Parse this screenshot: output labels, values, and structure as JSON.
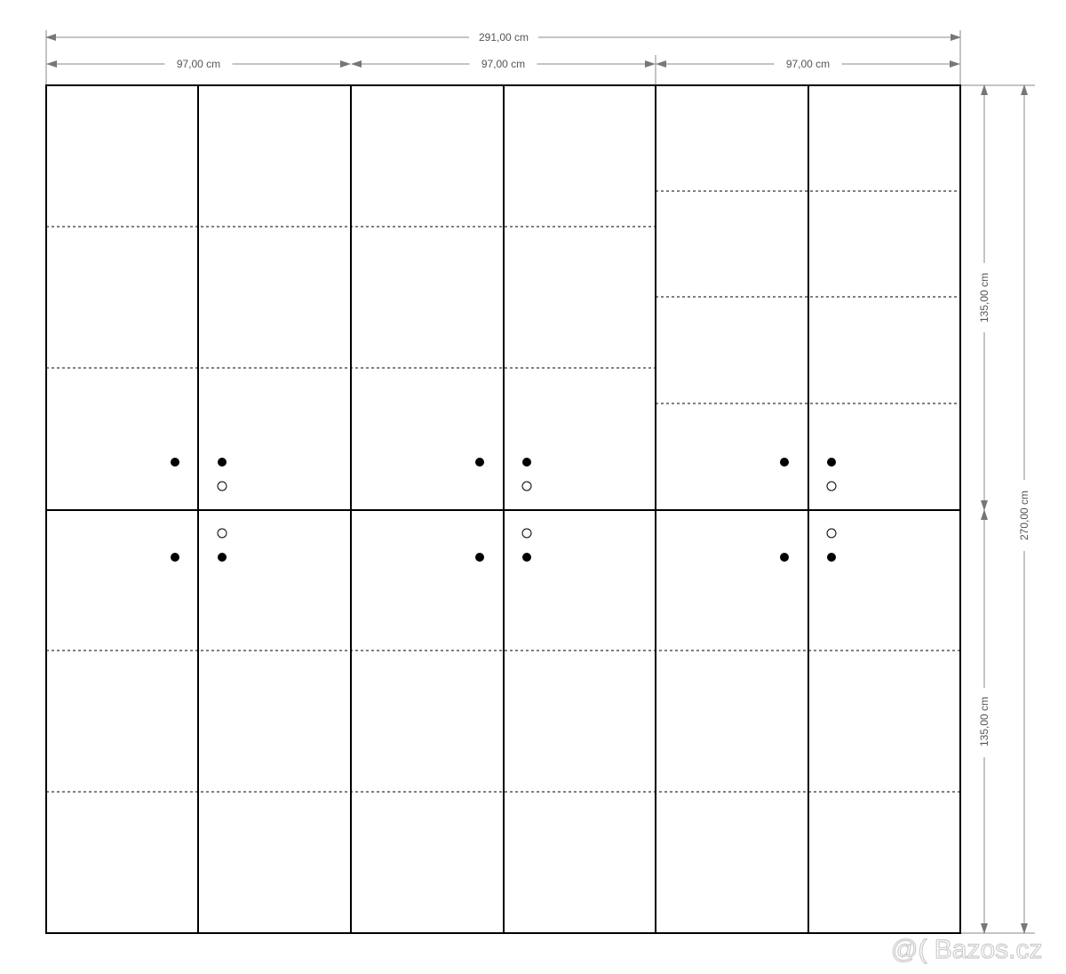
{
  "dimensions": {
    "total_width": "291,00 cm",
    "section_widths": [
      "97,00 cm",
      "97,00 cm",
      "97,00 cm"
    ],
    "upper_height": "135,00 cm",
    "lower_height": "135,00 cm",
    "total_height": "270,00 cm"
  },
  "watermark": "@( Bazos.cz",
  "colors": {
    "lines": "#000000",
    "dimension_lines": "#888888"
  }
}
